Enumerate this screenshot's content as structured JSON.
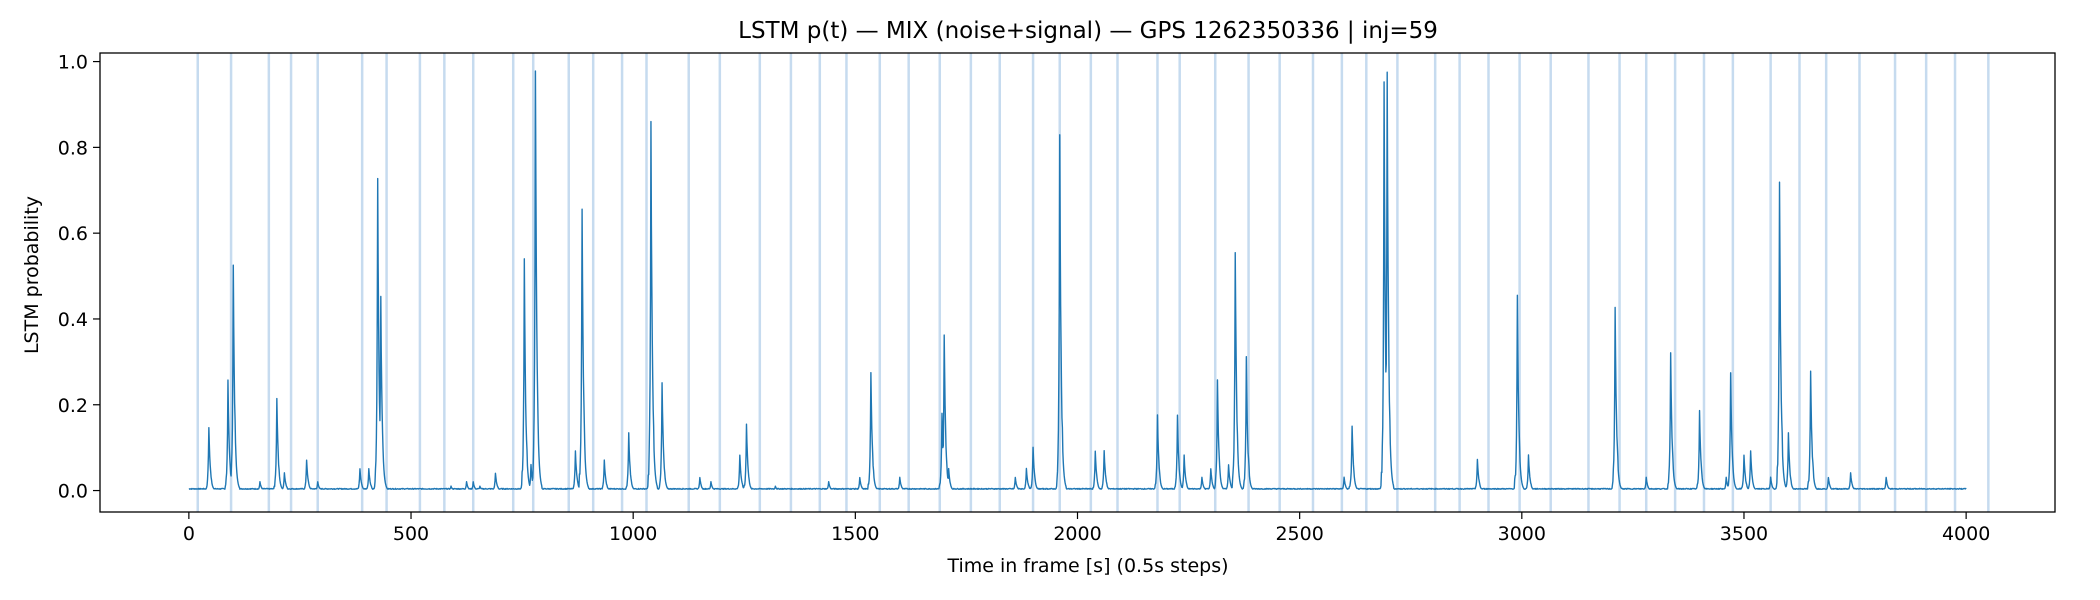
{
  "chart_data": {
    "type": "line",
    "title": "LSTM p(t) — MIX (noise+signal) — GPS 1262350336 | inj=59",
    "xlabel": "Time in frame [s] (0.5s steps)",
    "ylabel": "LSTM probability",
    "xlim": [
      -200,
      4200
    ],
    "ylim": [
      -0.05,
      1.02
    ],
    "xticks": [
      0,
      500,
      1000,
      1500,
      2000,
      2500,
      3000,
      3500,
      4000
    ],
    "yticks": [
      0.0,
      0.2,
      0.4,
      0.6,
      0.8,
      1.0
    ],
    "xtick_labels": [
      "0",
      "500",
      "1000",
      "1500",
      "2000",
      "2500",
      "3000",
      "3500",
      "4000"
    ],
    "ytick_labels": [
      "0.0",
      "0.2",
      "0.4",
      "0.6",
      "0.8",
      "1.0"
    ],
    "grid": false,
    "series_color": "#1f77b4",
    "injection_color": "#c6dbef",
    "x_start": 0,
    "x_end": 4000,
    "baseline": 0.003,
    "peaks": [
      [
        45,
        0.145
      ],
      [
        88,
        0.25
      ],
      [
        100,
        0.51
      ],
      [
        160,
        0.02
      ],
      [
        198,
        0.21
      ],
      [
        215,
        0.04
      ],
      [
        265,
        0.07
      ],
      [
        290,
        0.02
      ],
      [
        385,
        0.05
      ],
      [
        405,
        0.05
      ],
      [
        425,
        0.71
      ],
      [
        432,
        0.44
      ],
      [
        590,
        0.01
      ],
      [
        625,
        0.02
      ],
      [
        640,
        0.02
      ],
      [
        655,
        0.01
      ],
      [
        690,
        0.04
      ],
      [
        755,
        0.52
      ],
      [
        770,
        0.06
      ],
      [
        780,
        0.97
      ],
      [
        870,
        0.09
      ],
      [
        885,
        0.65
      ],
      [
        935,
        0.07
      ],
      [
        990,
        0.13
      ],
      [
        1040,
        0.83
      ],
      [
        1065,
        0.25
      ],
      [
        1150,
        0.03
      ],
      [
        1175,
        0.02
      ],
      [
        1240,
        0.08
      ],
      [
        1255,
        0.15
      ],
      [
        1320,
        0.01
      ],
      [
        1440,
        0.02
      ],
      [
        1510,
        0.03
      ],
      [
        1535,
        0.27
      ],
      [
        1600,
        0.03
      ],
      [
        1695,
        0.18
      ],
      [
        1700,
        0.36
      ],
      [
        1710,
        0.05
      ],
      [
        1860,
        0.03
      ],
      [
        1885,
        0.05
      ],
      [
        1900,
        0.1
      ],
      [
        1960,
        0.8
      ],
      [
        2040,
        0.09
      ],
      [
        2060,
        0.09
      ],
      [
        2180,
        0.17
      ],
      [
        2225,
        0.17
      ],
      [
        2240,
        0.08
      ],
      [
        2280,
        0.03
      ],
      [
        2300,
        0.05
      ],
      [
        2315,
        0.25
      ],
      [
        2340,
        0.06
      ],
      [
        2355,
        0.55
      ],
      [
        2380,
        0.3
      ],
      [
        2600,
        0.03
      ],
      [
        2618,
        0.15
      ],
      [
        2690,
        0.92
      ],
      [
        2697,
        0.97
      ],
      [
        2700,
        0.2
      ],
      [
        2900,
        0.07
      ],
      [
        2990,
        0.44
      ],
      [
        3015,
        0.08
      ],
      [
        3210,
        0.42
      ],
      [
        3280,
        0.03
      ],
      [
        3335,
        0.31
      ],
      [
        3400,
        0.18
      ],
      [
        3460,
        0.03
      ],
      [
        3470,
        0.27
      ],
      [
        3500,
        0.08
      ],
      [
        3515,
        0.09
      ],
      [
        3560,
        0.03
      ],
      [
        3580,
        0.71
      ],
      [
        3600,
        0.13
      ],
      [
        3650,
        0.27
      ],
      [
        3690,
        0.03
      ],
      [
        3740,
        0.04
      ],
      [
        3820,
        0.03
      ]
    ],
    "injections": [
      20,
      95,
      180,
      230,
      290,
      390,
      445,
      520,
      575,
      640,
      730,
      775,
      855,
      910,
      975,
      1030,
      1125,
      1195,
      1285,
      1355,
      1420,
      1480,
      1555,
      1620,
      1690,
      1760,
      1825,
      1900,
      1960,
      2030,
      2090,
      2180,
      2230,
      2310,
      2385,
      2455,
      2530,
      2595,
      2650,
      2720,
      2805,
      2860,
      2925,
      2995,
      3065,
      3150,
      3220,
      3280,
      3345,
      3410,
      3475,
      3560,
      3625,
      3685,
      3760,
      3840,
      3910,
      3975,
      4050
    ]
  }
}
